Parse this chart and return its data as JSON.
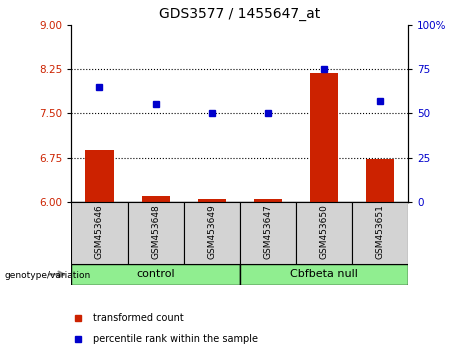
{
  "title": "GDS3577 / 1455647_at",
  "samples": [
    "GSM453646",
    "GSM453648",
    "GSM453649",
    "GSM453647",
    "GSM453650",
    "GSM453651"
  ],
  "transformed_count": [
    6.88,
    6.1,
    6.05,
    6.05,
    8.18,
    6.72
  ],
  "percentile_rank": [
    65,
    55,
    50,
    50,
    75,
    57
  ],
  "bar_color": "#cc2200",
  "dot_color": "#0000cc",
  "ylim_left": [
    6,
    9
  ],
  "ylim_right": [
    0,
    100
  ],
  "yticks_left": [
    6,
    6.75,
    7.5,
    8.25,
    9
  ],
  "yticks_right": [
    0,
    25,
    50,
    75,
    100
  ],
  "hlines": [
    6.75,
    7.5,
    8.25
  ],
  "bar_baseline": 6.0,
  "legend_items": [
    "transformed count",
    "percentile rank within the sample"
  ],
  "group_label": "genotype/variation",
  "groups": [
    {
      "label": "control",
      "start": 0,
      "end": 2
    },
    {
      "label": "Cbfbeta null",
      "start": 3,
      "end": 5
    }
  ],
  "sample_box_color": "#d3d3d3",
  "group_box_color": "#90EE90"
}
